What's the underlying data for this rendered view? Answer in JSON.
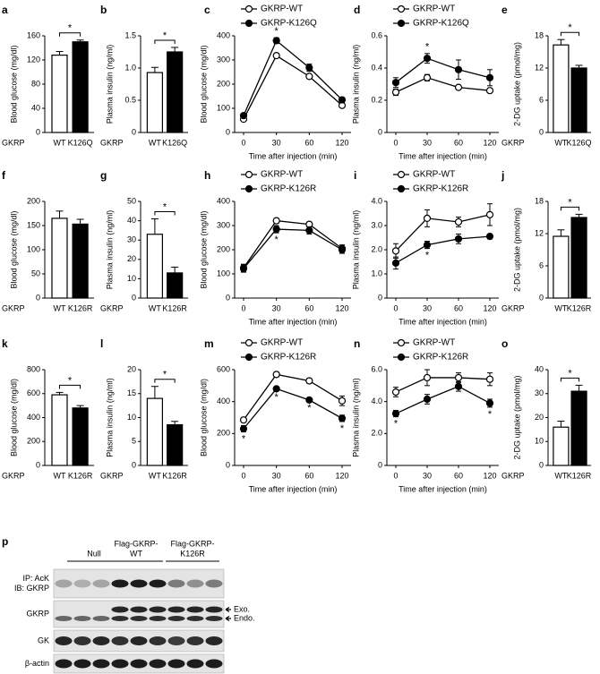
{
  "chart_data": [
    {
      "type": "bar",
      "panel": "a",
      "ylabel": "Blood glucose (mg/dl)",
      "group_label": "GKRP",
      "categories": [
        "WT",
        "K126Q"
      ],
      "values": [
        128,
        150
      ],
      "errors": [
        6,
        3
      ],
      "colors": [
        "#ffffff",
        "#000000"
      ],
      "ylim": [
        0,
        160
      ],
      "yticks": [
        0,
        40,
        80,
        120,
        160
      ],
      "annotations": [
        {
          "text": "*"
        }
      ]
    },
    {
      "type": "bar",
      "panel": "b",
      "ylabel": "Plasma insulin (ng/ml)",
      "group_label": "GKRP",
      "categories": [
        "WT",
        "K126Q"
      ],
      "values": [
        0.93,
        1.25
      ],
      "errors": [
        0.08,
        0.07
      ],
      "colors": [
        "#ffffff",
        "#000000"
      ],
      "ylim": [
        0,
        1.5
      ],
      "yticks": [
        0,
        0.5,
        {
          "value": 1,
          "label": "1.0"
        },
        1.5
      ],
      "annotations": [
        {
          "text": "*"
        }
      ]
    },
    {
      "type": "line",
      "panel": "c",
      "ylabel": "Blood glucose (mg/dl)",
      "xlabel": "Time after injection (min)",
      "categories": [
        "0",
        "30",
        "60",
        "120"
      ],
      "series": [
        {
          "name": "GKRP-WT",
          "color": "#ffffff",
          "values": [
            55,
            318,
            232,
            112
          ],
          "errors": [
            5,
            8,
            8,
            8
          ]
        },
        {
          "name": "GKRP-K126Q",
          "color": "#000000",
          "values": [
            70,
            380,
            268,
            135
          ],
          "errors": [
            5,
            12,
            15,
            10
          ]
        }
      ],
      "ylim": [
        0,
        400
      ],
      "yticks": [
        0,
        100,
        200,
        300,
        400
      ],
      "annotations": [
        {
          "text": "*",
          "x": "30",
          "anchor": "above"
        }
      ]
    },
    {
      "type": "line",
      "panel": "d",
      "ylabel": "Plasma insulin (ng/ml)",
      "xlabel": "Time after injection (min)",
      "categories": [
        "0",
        "30",
        "60",
        "120"
      ],
      "series": [
        {
          "name": "GKRP-WT",
          "color": "#ffffff",
          "values": [
            0.25,
            0.34,
            0.28,
            0.26
          ],
          "errors": [
            0.02,
            0.02,
            0.01,
            0.01
          ]
        },
        {
          "name": "GKRP-K126Q",
          "color": "#000000",
          "values": [
            0.31,
            0.46,
            0.39,
            0.34
          ],
          "errors": [
            0.03,
            0.03,
            0.06,
            0.05
          ]
        }
      ],
      "ylim": [
        0,
        0.6
      ],
      "yticks": [
        0,
        0.2,
        0.4,
        0.6
      ],
      "annotations": [
        {
          "text": "*",
          "x": "30",
          "anchor": "above"
        }
      ]
    },
    {
      "type": "bar",
      "panel": "e",
      "ylabel": "2-DG uptake (pmol/mg)",
      "group_label": "GKRP",
      "categories": [
        "WT",
        "K126Q"
      ],
      "values": [
        16.3,
        12
      ],
      "errors": [
        1,
        0.5
      ],
      "colors": [
        "#ffffff",
        "#000000"
      ],
      "ylim": [
        0,
        18
      ],
      "yticks": [
        0,
        6,
        12,
        18
      ],
      "annotations": [
        {
          "text": "*"
        }
      ]
    },
    {
      "type": "bar",
      "panel": "f",
      "ylabel": "Blood glucose (mg/dl)",
      "group_label": "GKRP",
      "categories": [
        "WT",
        "K126R"
      ],
      "values": [
        165,
        153
      ],
      "errors": [
        15,
        10
      ],
      "colors": [
        "#ffffff",
        "#000000"
      ],
      "ylim": [
        0,
        200
      ],
      "yticks": [
        0,
        50,
        100,
        150,
        200
      ],
      "annotations": []
    },
    {
      "type": "bar",
      "panel": "g",
      "ylabel": "Plasma insulin (ng/ml)",
      "group_label": "GKRP",
      "categories": [
        "WT",
        "K126R"
      ],
      "values": [
        33,
        13
      ],
      "errors": [
        8,
        3
      ],
      "colors": [
        "#ffffff",
        "#000000"
      ],
      "ylim": [
        0,
        50
      ],
      "yticks": [
        0,
        10,
        20,
        30,
        40,
        50
      ],
      "annotations": [
        {
          "text": "*"
        }
      ]
    },
    {
      "type": "line",
      "panel": "h",
      "ylabel": "Blood glucose (mg/dl)",
      "xlabel": "Time after injection (min)",
      "categories": [
        "0",
        "30",
        "60",
        "120"
      ],
      "series": [
        {
          "name": "GKRP-WT",
          "color": "#ffffff",
          "values": [
            125,
            320,
            305,
            205
          ],
          "errors": [
            15,
            10,
            10,
            15
          ]
        },
        {
          "name": "GKRP-K126R",
          "color": "#000000",
          "values": [
            122,
            285,
            280,
            200
          ],
          "errors": [
            15,
            15,
            15,
            15
          ]
        }
      ],
      "ylim": [
        0,
        400
      ],
      "yticks": [
        0,
        100,
        200,
        300,
        400
      ],
      "annotations": [
        {
          "text": "*",
          "x": "30",
          "anchor": "below"
        }
      ]
    },
    {
      "type": "line",
      "panel": "i",
      "ylabel": "Plasma insulin (ng/ml)",
      "xlabel": "Time after injection (min)",
      "categories": [
        "0",
        "30",
        "60",
        "120"
      ],
      "series": [
        {
          "name": "GKRP-WT",
          "color": "#ffffff",
          "values": [
            1.95,
            3.3,
            3.15,
            3.45
          ],
          "errors": [
            0.3,
            0.35,
            0.2,
            0.45
          ]
        },
        {
          "name": "GKRP-K126R",
          "color": "#000000",
          "values": [
            1.45,
            2.2,
            2.45,
            2.55
          ],
          "errors": [
            0.25,
            0.15,
            0.2,
            0.1
          ]
        }
      ],
      "ylim": [
        0,
        4
      ],
      "yticks": [
        0,
        {
          "value": 1,
          "label": "1.0"
        },
        {
          "value": 2,
          "label": "2.0"
        },
        {
          "value": 3,
          "label": "3.0"
        },
        {
          "value": 4,
          "label": "4.0"
        }
      ],
      "annotations": [
        {
          "text": "*",
          "x": "30",
          "anchor": "below"
        }
      ]
    },
    {
      "type": "bar",
      "panel": "j",
      "ylabel": "2-DG uptake (pmol/mg)",
      "group_label": "GKRP",
      "categories": [
        "WT",
        "K126R"
      ],
      "values": [
        11.5,
        15
      ],
      "errors": [
        1.2,
        0.6
      ],
      "colors": [
        "#ffffff",
        "#000000"
      ],
      "ylim": [
        0,
        18
      ],
      "yticks": [
        0,
        6,
        12,
        18
      ],
      "annotations": [
        {
          "text": "*"
        }
      ]
    },
    {
      "type": "bar",
      "panel": "k",
      "ylabel": "Blood glucose (mg/dl)",
      "group_label": "GKRP",
      "categories": [
        "WT",
        "K126R"
      ],
      "values": [
        590,
        480
      ],
      "errors": [
        20,
        20
      ],
      "colors": [
        "#ffffff",
        "#000000"
      ],
      "ylim": [
        0,
        800
      ],
      "yticks": [
        0,
        200,
        400,
        600,
        800
      ],
      "annotations": [
        {
          "text": "*"
        }
      ]
    },
    {
      "type": "bar",
      "panel": "l",
      "ylabel": "Plasma insulin (ng/ml)",
      "group_label": "GKRP",
      "categories": [
        "WT",
        "K126R"
      ],
      "values": [
        14,
        8.5
      ],
      "errors": [
        2.5,
        0.7
      ],
      "colors": [
        "#ffffff",
        "#000000"
      ],
      "ylim": [
        0,
        20
      ],
      "yticks": [
        0,
        5,
        10,
        15,
        20
      ],
      "annotations": [
        {
          "text": "*"
        }
      ]
    },
    {
      "type": "line",
      "panel": "m",
      "ylabel": "Blood glucose (mg/dl)",
      "xlabel": "Time after injection (min)",
      "categories": [
        "0",
        "30",
        "60",
        "120"
      ],
      "series": [
        {
          "name": "GKRP-WT",
          "color": "#ffffff",
          "values": [
            285,
            570,
            530,
            405
          ],
          "errors": [
            10,
            15,
            15,
            30
          ]
        },
        {
          "name": "GKRP-K126R",
          "color": "#000000",
          "values": [
            230,
            480,
            410,
            295
          ],
          "errors": [
            20,
            10,
            8,
            20
          ]
        }
      ],
      "ylim": [
        0,
        600
      ],
      "yticks": [
        0,
        200,
        400,
        600
      ],
      "annotations": [
        {
          "text": "*",
          "x": "0",
          "anchor": "below"
        },
        {
          "text": "*",
          "x": "30",
          "anchor": "below"
        },
        {
          "text": "*",
          "x": "60",
          "anchor": "below"
        },
        {
          "text": "*",
          "x": "120",
          "anchor": "below"
        }
      ]
    },
    {
      "type": "line",
      "panel": "n",
      "ylabel": "Plasma insulin (ng/ml)",
      "xlabel": "Time after injection (min)",
      "categories": [
        "0",
        "30",
        "60",
        "120"
      ],
      "series": [
        {
          "name": "GKRP-WT",
          "color": "#ffffff",
          "values": [
            4.6,
            5.5,
            5.5,
            5.4
          ],
          "errors": [
            0.3,
            0.5,
            0.3,
            0.4
          ]
        },
        {
          "name": "GKRP-K126R",
          "color": "#000000",
          "values": [
            3.25,
            4.15,
            4.95,
            3.9
          ],
          "errors": [
            0.2,
            0.3,
            0.3,
            0.25
          ]
        }
      ],
      "ylim": [
        0,
        6
      ],
      "yticks": [
        0,
        {
          "value": 2,
          "label": "2.0"
        },
        {
          "value": 4,
          "label": "4.0"
        },
        {
          "value": 6,
          "label": "6.0"
        }
      ],
      "annotations": [
        {
          "text": "*",
          "x": "0",
          "anchor": "below"
        },
        {
          "text": "*",
          "x": "120",
          "anchor": "below"
        }
      ]
    },
    {
      "type": "bar",
      "panel": "o",
      "ylabel": "2-DG uptake (pmol/mg)",
      "group_label": "GKRP",
      "categories": [
        "WT",
        "K126R"
      ],
      "values": [
        16,
        31
      ],
      "errors": [
        2.5,
        2.5
      ],
      "colors": [
        "#ffffff",
        "#000000"
      ],
      "ylim": [
        0,
        40
      ],
      "yticks": [
        0,
        10,
        20,
        30,
        40
      ],
      "annotations": [
        {
          "text": "*"
        }
      ]
    }
  ],
  "blot": {
    "panel": "p",
    "groups": [
      [
        "Null"
      ],
      [
        "Flag-GKRP-",
        "WT"
      ],
      [
        "Flag-GKRP-",
        "K126R"
      ]
    ],
    "rows": [
      [
        "IP: AcK",
        "IB: GKRP"
      ],
      [
        "GKRP"
      ],
      [
        "GK"
      ],
      [
        "β-actin"
      ]
    ],
    "markers": [
      "Exo.",
      "Endo."
    ]
  }
}
